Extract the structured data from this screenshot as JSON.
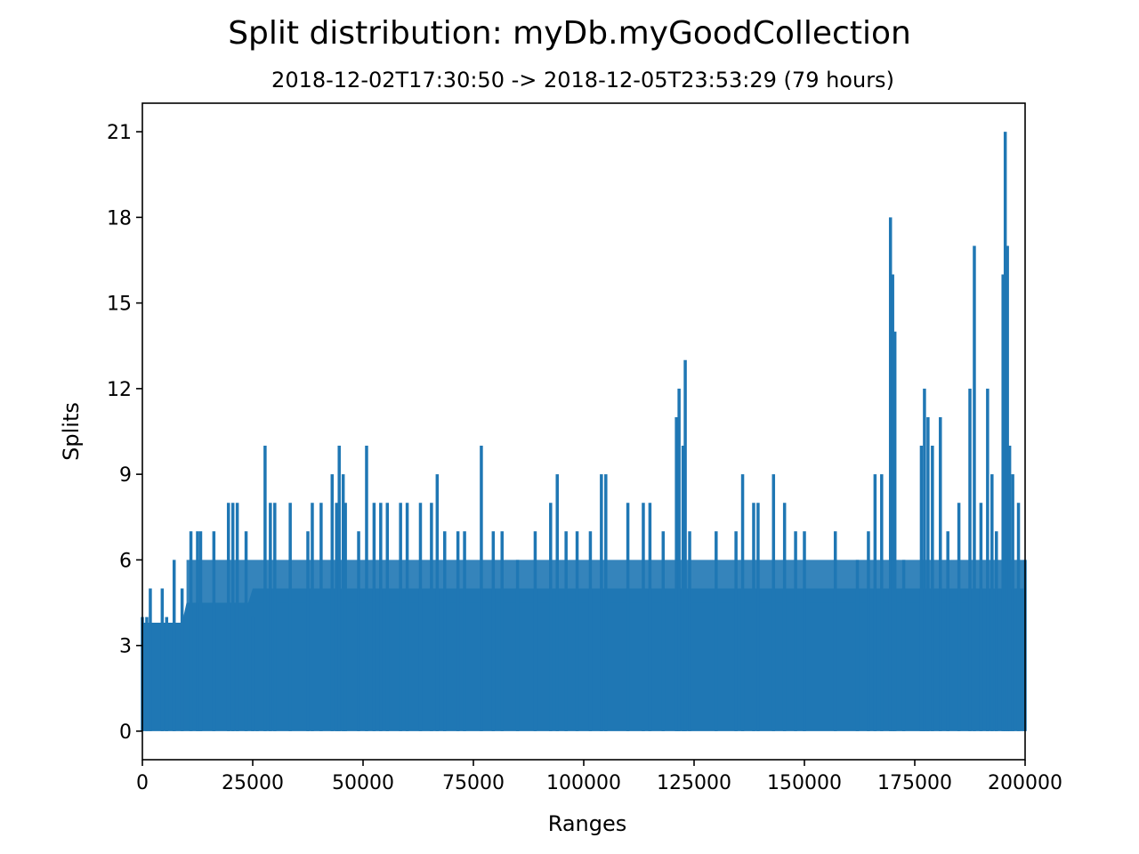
{
  "chart_data": {
    "type": "line",
    "title": "Split distribution: myDb.myGoodCollection",
    "subtitle": "2018-12-02T17:30:50 -> 2018-12-05T23:53:29 (79 hours)",
    "xlabel": "Ranges",
    "ylabel": "Splits",
    "xlim": [
      0,
      200000
    ],
    "ylim": [
      -1,
      22
    ],
    "xticks": [
      0,
      25000,
      50000,
      75000,
      100000,
      125000,
      150000,
      175000,
      200000
    ],
    "yticks": [
      0,
      3,
      6,
      9,
      12,
      15,
      18,
      21
    ],
    "grid": false,
    "series": [
      {
        "color": "#1f77b4",
        "min_value": 0,
        "peaks": [
          {
            "x": 0,
            "y": 4
          },
          {
            "x": 1000,
            "y": 4
          },
          {
            "x": 1800,
            "y": 5
          },
          {
            "x": 4500,
            "y": 5
          },
          {
            "x": 5500,
            "y": 4
          },
          {
            "x": 7200,
            "y": 6
          },
          {
            "x": 9000,
            "y": 5
          },
          {
            "x": 11000,
            "y": 7
          },
          {
            "x": 12500,
            "y": 7
          },
          {
            "x": 13200,
            "y": 7
          },
          {
            "x": 16200,
            "y": 7
          },
          {
            "x": 19500,
            "y": 8
          },
          {
            "x": 20500,
            "y": 8
          },
          {
            "x": 21500,
            "y": 8
          },
          {
            "x": 23500,
            "y": 7
          },
          {
            "x": 25000,
            "y": 4
          },
          {
            "x": 26000,
            "y": 5
          },
          {
            "x": 27800,
            "y": 10
          },
          {
            "x": 29000,
            "y": 8
          },
          {
            "x": 30000,
            "y": 8
          },
          {
            "x": 33500,
            "y": 8
          },
          {
            "x": 37500,
            "y": 7
          },
          {
            "x": 38500,
            "y": 8
          },
          {
            "x": 40500,
            "y": 8
          },
          {
            "x": 43000,
            "y": 9
          },
          {
            "x": 44000,
            "y": 8
          },
          {
            "x": 44600,
            "y": 10
          },
          {
            "x": 45500,
            "y": 9
          },
          {
            "x": 46000,
            "y": 8
          },
          {
            "x": 49000,
            "y": 7
          },
          {
            "x": 50800,
            "y": 10
          },
          {
            "x": 52500,
            "y": 8
          },
          {
            "x": 54000,
            "y": 8
          },
          {
            "x": 55500,
            "y": 8
          },
          {
            "x": 58500,
            "y": 8
          },
          {
            "x": 60000,
            "y": 8
          },
          {
            "x": 63000,
            "y": 8
          },
          {
            "x": 65500,
            "y": 8
          },
          {
            "x": 66800,
            "y": 9
          },
          {
            "x": 68500,
            "y": 7
          },
          {
            "x": 71500,
            "y": 7
          },
          {
            "x": 73000,
            "y": 7
          },
          {
            "x": 76800,
            "y": 10
          },
          {
            "x": 79500,
            "y": 7
          },
          {
            "x": 81500,
            "y": 7
          },
          {
            "x": 85000,
            "y": 6
          },
          {
            "x": 89000,
            "y": 7
          },
          {
            "x": 92500,
            "y": 8
          },
          {
            "x": 94000,
            "y": 9
          },
          {
            "x": 96000,
            "y": 7
          },
          {
            "x": 98500,
            "y": 7
          },
          {
            "x": 101500,
            "y": 7
          },
          {
            "x": 104000,
            "y": 9
          },
          {
            "x": 105000,
            "y": 9
          },
          {
            "x": 110000,
            "y": 8
          },
          {
            "x": 113500,
            "y": 8
          },
          {
            "x": 115000,
            "y": 8
          },
          {
            "x": 118000,
            "y": 7
          },
          {
            "x": 121000,
            "y": 11
          },
          {
            "x": 121600,
            "y": 12
          },
          {
            "x": 122500,
            "y": 10
          },
          {
            "x": 123000,
            "y": 13
          },
          {
            "x": 124000,
            "y": 7
          },
          {
            "x": 130000,
            "y": 7
          },
          {
            "x": 134500,
            "y": 7
          },
          {
            "x": 136000,
            "y": 9
          },
          {
            "x": 138500,
            "y": 8
          },
          {
            "x": 139500,
            "y": 8
          },
          {
            "x": 143000,
            "y": 9
          },
          {
            "x": 145500,
            "y": 8
          },
          {
            "x": 148000,
            "y": 7
          },
          {
            "x": 150000,
            "y": 7
          },
          {
            "x": 157000,
            "y": 7
          },
          {
            "x": 162000,
            "y": 6
          },
          {
            "x": 164500,
            "y": 7
          },
          {
            "x": 166000,
            "y": 9
          },
          {
            "x": 167500,
            "y": 9
          },
          {
            "x": 169500,
            "y": 18
          },
          {
            "x": 170000,
            "y": 16
          },
          {
            "x": 170500,
            "y": 14
          },
          {
            "x": 172500,
            "y": 6
          },
          {
            "x": 176500,
            "y": 10
          },
          {
            "x": 177200,
            "y": 12
          },
          {
            "x": 178000,
            "y": 11
          },
          {
            "x": 179000,
            "y": 10
          },
          {
            "x": 180800,
            "y": 11
          },
          {
            "x": 182500,
            "y": 7
          },
          {
            "x": 185000,
            "y": 8
          },
          {
            "x": 187500,
            "y": 12
          },
          {
            "x": 188500,
            "y": 17
          },
          {
            "x": 190000,
            "y": 8
          },
          {
            "x": 191500,
            "y": 12
          },
          {
            "x": 192500,
            "y": 9
          },
          {
            "x": 193500,
            "y": 7
          },
          {
            "x": 195000,
            "y": 16
          },
          {
            "x": 195500,
            "y": 21
          },
          {
            "x": 196000,
            "y": 17
          },
          {
            "x": 196500,
            "y": 10
          },
          {
            "x": 197200,
            "y": 9
          },
          {
            "x": 198500,
            "y": 8
          },
          {
            "x": 200000,
            "y": 6
          }
        ]
      }
    ]
  }
}
